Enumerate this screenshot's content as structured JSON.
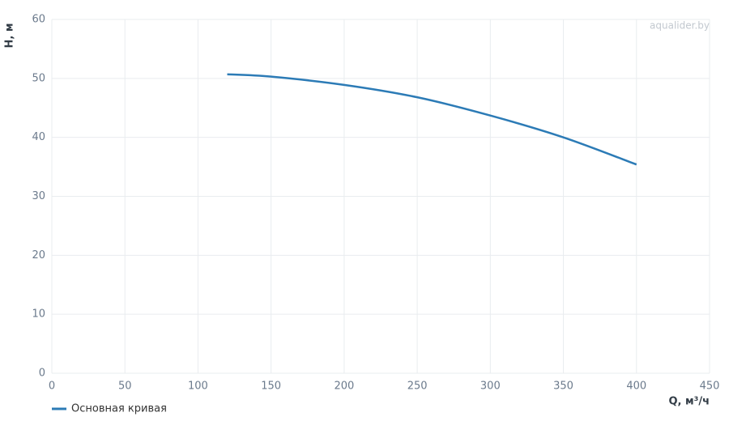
{
  "chart_data": {
    "type": "line",
    "watermark": "aqualider.by",
    "x_label": "Q, м³/ч",
    "y_label": "H, м",
    "xlim": [
      0,
      450
    ],
    "xticks": [
      0,
      50,
      100,
      150,
      200,
      250,
      300,
      350,
      400,
      450
    ],
    "ylim": [
      0,
      60
    ],
    "yticks": [
      0,
      10,
      20,
      30,
      40,
      50,
      60
    ],
    "grid": true,
    "x": [
      120,
      150,
      200,
      250,
      300,
      350,
      400
    ],
    "series": [
      {
        "name": "Основная кривая",
        "color": "#2c7bb6",
        "values": [
          50.7,
          50.3,
          48.9,
          46.8,
          43.7,
          40.0,
          35.4
        ]
      }
    ]
  }
}
